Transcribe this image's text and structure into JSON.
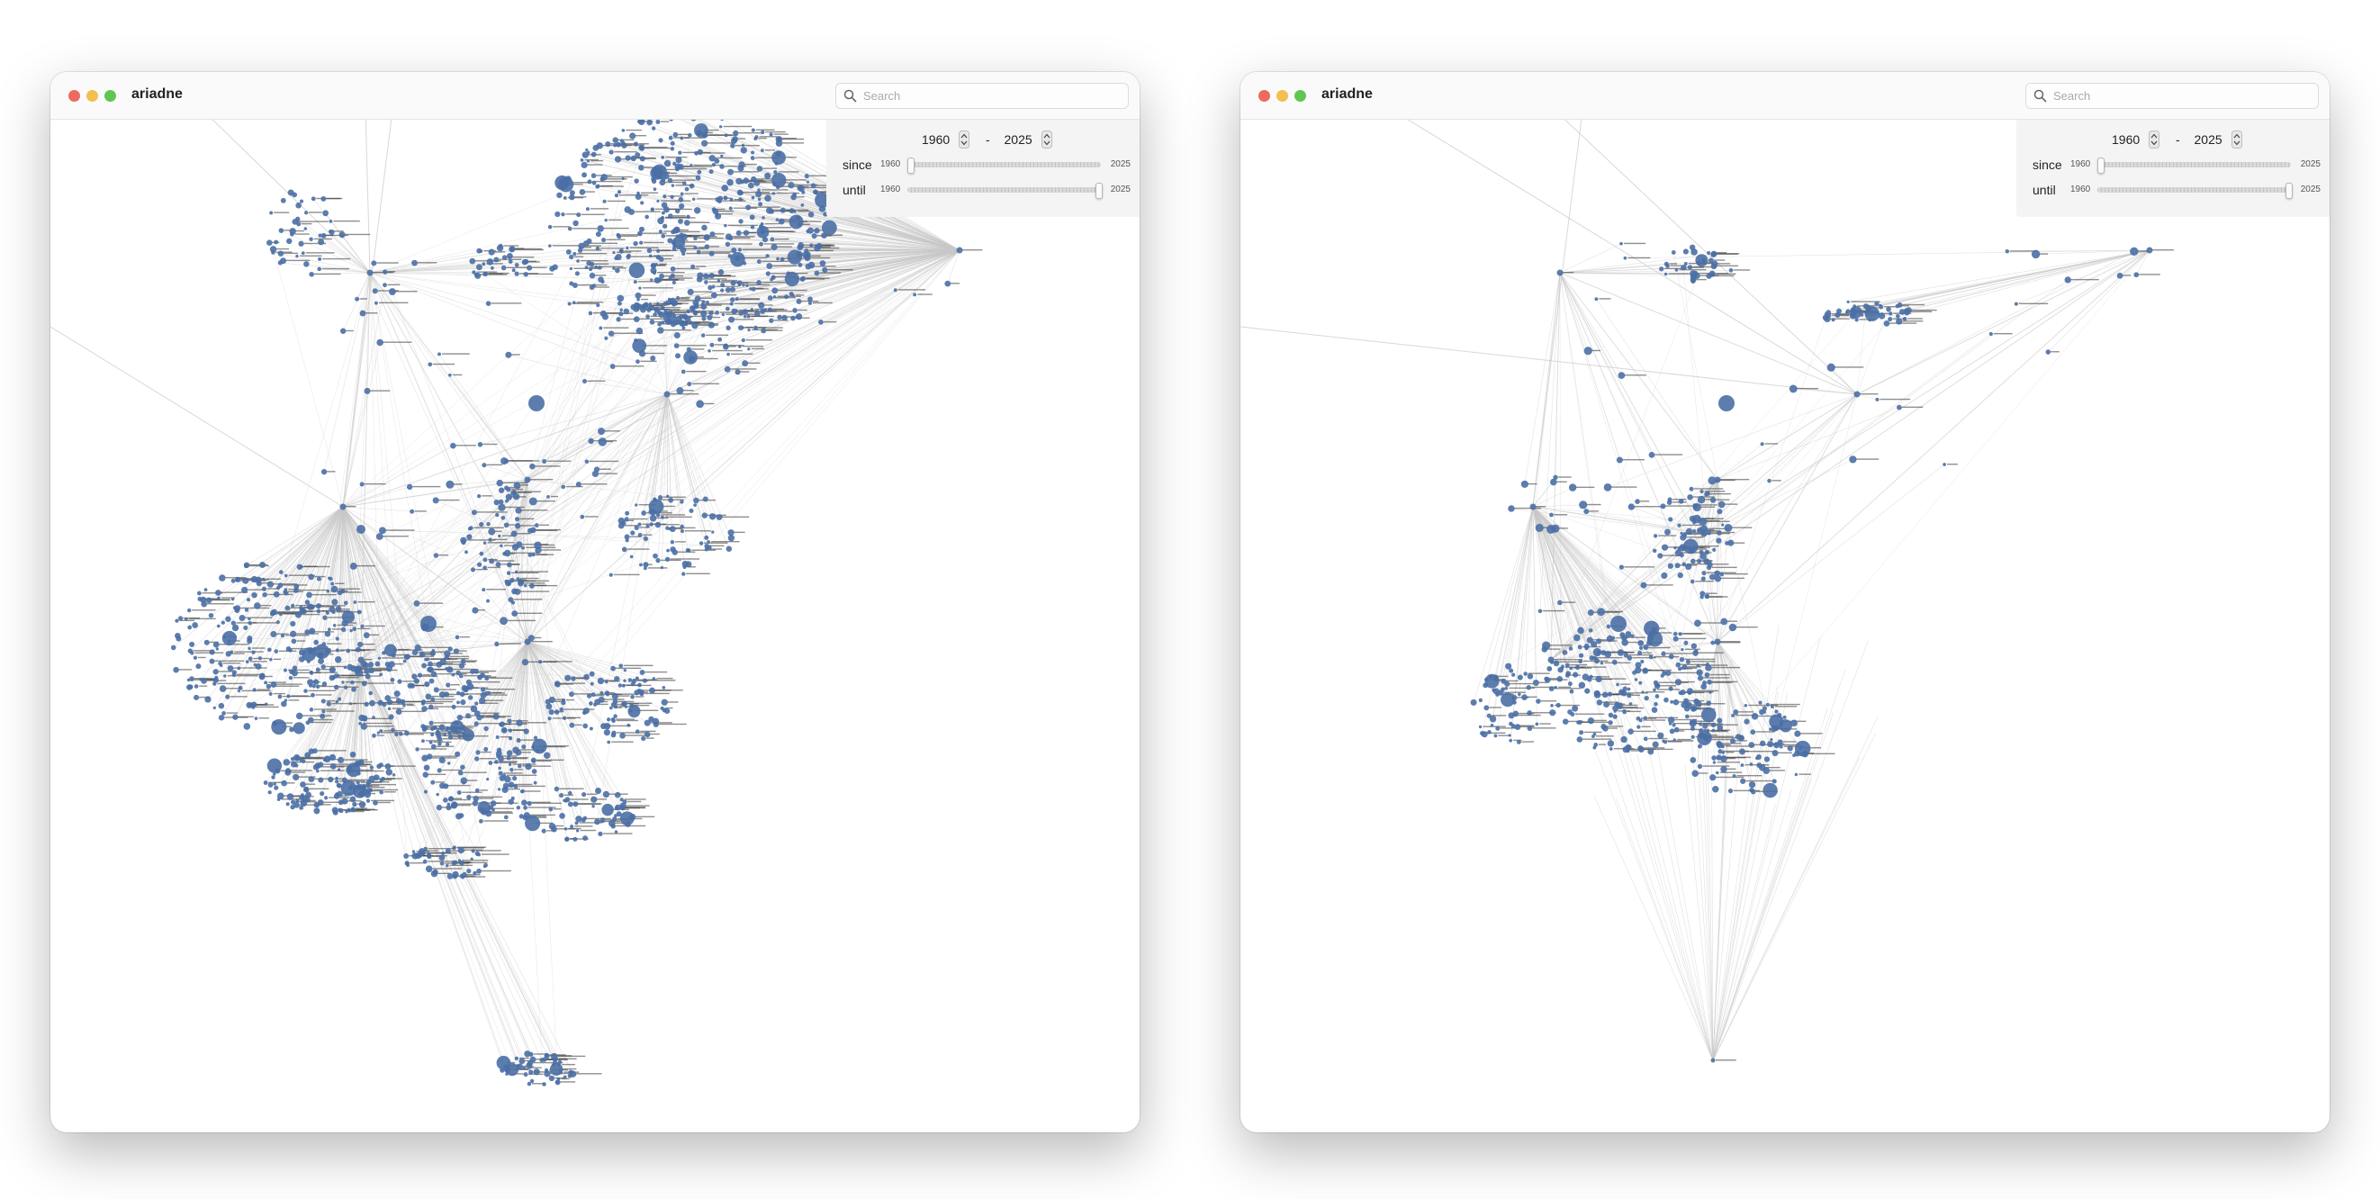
{
  "windows": [
    {
      "title": "ariadne",
      "search": {
        "placeholder": "Search",
        "value": ""
      },
      "filter": {
        "from_year": "1960",
        "to_year": "2025",
        "separator": "-",
        "since": {
          "label": "since",
          "min": "1960",
          "max": "2025",
          "value": 1960
        },
        "until": {
          "label": "until",
          "min": "1960",
          "max": "2025",
          "value": 2025
        }
      },
      "graph": {
        "variant": "full",
        "node_color": "#4a6fa5",
        "edge_color": "#c8c8c8"
      }
    },
    {
      "title": "ariadne",
      "search": {
        "placeholder": "Search",
        "value": ""
      },
      "filter": {
        "from_year": "1960",
        "to_year": "2025",
        "separator": "-",
        "since": {
          "label": "since",
          "min": "1960",
          "max": "2025",
          "value": 1960
        },
        "until": {
          "label": "until",
          "min": "1960",
          "max": "2025",
          "value": 2025
        }
      },
      "graph": {
        "variant": "filtered",
        "node_color": "#4a6fa5",
        "edge_color": "#c8c8c8"
      }
    }
  ]
}
